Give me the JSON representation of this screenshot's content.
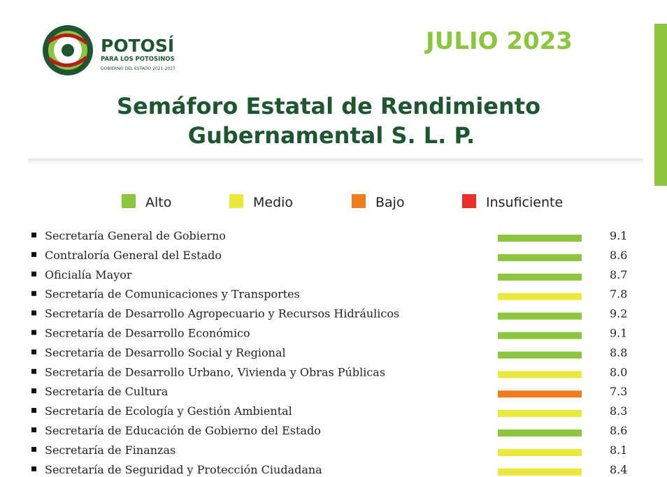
{
  "header": {
    "brand": "POTOSÍ",
    "tagline": "PARA LOS POTOSINOS",
    "government": "GOBIERNO DEL ESTADO 2021-2027",
    "period": "JULIO 2023"
  },
  "title": [
    "Semáforo Estatal de Rendimiento",
    "Gubernamental S. L. P."
  ],
  "legend": [
    {
      "label": "Alto",
      "color": "#8cc63f"
    },
    {
      "label": "Medio",
      "color": "#ebe83c"
    },
    {
      "label": "Bajo",
      "color": "#f07c22"
    },
    {
      "label": "Insuficiente",
      "color": "#e8302a"
    }
  ],
  "rows": [
    {
      "name": "Secretaría General de Gobierno",
      "score": "9.1",
      "color": "#8cc63f"
    },
    {
      "name": "Contraloría General del Estado",
      "score": "8.6",
      "color": "#8cc63f"
    },
    {
      "name": "Oficialía Mayor",
      "score": "8.7",
      "color": "#8cc63f"
    },
    {
      "name": "Secretaría de Comunicaciones y Transportes",
      "score": "7.8",
      "color": "#ebe83c"
    },
    {
      "name": "Secretaría de Desarrollo Agropecuario y Recursos Hidráulicos",
      "score": "9.2",
      "color": "#8cc63f"
    },
    {
      "name": "Secretaría de Desarrollo Económico",
      "score": "9.1",
      "color": "#8cc63f"
    },
    {
      "name": "Secretaría de Desarrollo Social y Regional",
      "score": "8.8",
      "color": "#8cc63f"
    },
    {
      "name": "Secretaría de Desarrollo Urbano, Vivienda y Obras Públicas",
      "score": "8.0",
      "color": "#ebe83c"
    },
    {
      "name": "Secretaría de Cultura",
      "score": "7.3",
      "color": "#f07c22"
    },
    {
      "name": "Secretaría de Ecología y Gestión Ambiental",
      "score": "8.3",
      "color": "#ebe83c"
    },
    {
      "name": "Secretaría de Educación de Gobierno del Estado",
      "score": "8.6",
      "color": "#8cc63f"
    },
    {
      "name": "Secretaría de Finanzas",
      "score": "8.1",
      "color": "#ebe83c"
    },
    {
      "name": "Secretaría de Seguridad y Protección Ciudadana",
      "score": "8.4",
      "color": "#ebe83c"
    }
  ]
}
